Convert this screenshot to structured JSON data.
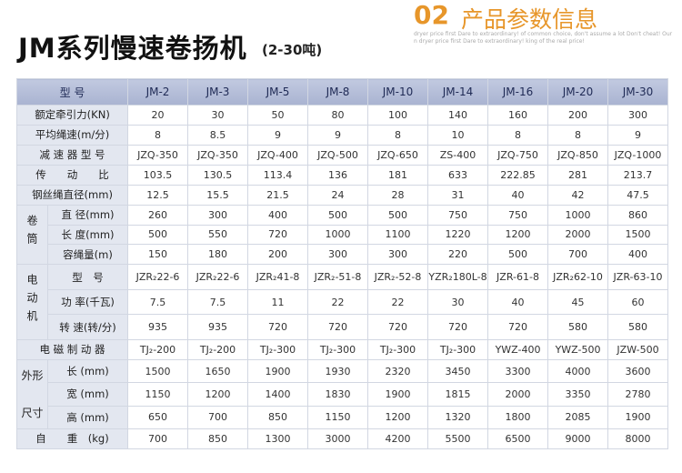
{
  "header": {
    "title": "JM系列慢速卷扬机",
    "subtitle": "(2-30吨)",
    "section_number": "02",
    "section_title": "产品参数信息",
    "tagline": "dryer price first Dare to extraordinary! of common choice, don't assume a lot Don't cheat! Our n dryer price first Dare to extraordinary! king of the real price!"
  },
  "table": {
    "header": [
      "型 号",
      "JM-2",
      "JM-3",
      "JM-5",
      "JM-8",
      "JM-10",
      "JM-14",
      "JM-16",
      "JM-20",
      "JM-30"
    ],
    "rows": [
      {
        "label": "额定牵引力(KN)",
        "values": [
          "20",
          "30",
          "50",
          "80",
          "100",
          "140",
          "160",
          "200",
          "300"
        ]
      },
      {
        "label": "平均绳速(m/分)",
        "values": [
          "8",
          "8.5",
          "9",
          "9",
          "8",
          "10",
          "8",
          "8",
          "9"
        ]
      },
      {
        "label": "减 速 器 型 号",
        "values": [
          "JZQ-350",
          "JZQ-350",
          "JZQ-400",
          "JZQ-500",
          "JZQ-650",
          "ZS-400",
          "JZQ-750",
          "JZQ-850",
          "JZQ-1000"
        ]
      },
      {
        "label": "传　　动　　比",
        "values": [
          "103.5",
          "130.5",
          "113.4",
          "136",
          "181",
          "633",
          "222.85",
          "281",
          "213.7"
        ]
      },
      {
        "label": "钢丝绳直径(mm)",
        "values": [
          "12.5",
          "15.5",
          "21.5",
          "24",
          "28",
          "31",
          "40",
          "42",
          "47.5"
        ]
      },
      {
        "group": [
          "卷筒"
        ],
        "items": [
          {
            "label": "直 径(mm)",
            "values": [
              "260",
              "300",
              "400",
              "500",
              "500",
              "750",
              "750",
              "1000",
              "860"
            ]
          },
          {
            "label": "长 度(mm)",
            "values": [
              "500",
              "550",
              "720",
              "1000",
              "1100",
              "1220",
              "1200",
              "2000",
              "1500"
            ]
          },
          {
            "label": "容绳量(m)",
            "values": [
              "150",
              "180",
              "200",
              "300",
              "300",
              "220",
              "500",
              "700",
              "400"
            ]
          }
        ]
      },
      {
        "group": [
          "电动机"
        ],
        "items": [
          {
            "label": "型　号",
            "values": [
              "JZR₂22-6",
              "JZR₂22-6",
              "JZR₂41-8",
              "JZR₂-51-8",
              "JZR₂-52-8",
              "YZR₂180L-8",
              "JZR-61-8",
              "JZR₂62-10",
              "JZR-63-10"
            ]
          },
          {
            "label": "功 率(千瓦)",
            "values": [
              "7.5",
              "7.5",
              "11",
              "22",
              "22",
              "30",
              "40",
              "45",
              "60"
            ]
          },
          {
            "label": "转 速(转/分)",
            "values": [
              "935",
              "935",
              "720",
              "720",
              "720",
              "720",
              "720",
              "580",
              "580"
            ]
          }
        ]
      },
      {
        "label": "电 磁 制 动 器",
        "values": [
          "TJ₂-200",
          "TJ₂-200",
          "TJ₂-300",
          "TJ₂-300",
          "TJ₂-300",
          "TJ₂-300",
          "YWZ-400",
          "YWZ-500",
          "JZW-500"
        ]
      },
      {
        "group": [
          "外形",
          "尺寸"
        ],
        "items": [
          {
            "label": "长 (mm)",
            "values": [
              "1500",
              "1650",
              "1900",
              "1930",
              "2320",
              "3450",
              "3300",
              "4000",
              "3600"
            ]
          },
          {
            "label": "宽 (mm)",
            "values": [
              "1150",
              "1200",
              "1400",
              "1830",
              "1900",
              "1815",
              "2000",
              "3350",
              "2780"
            ]
          },
          {
            "label": "高 (mm)",
            "values": [
              "650",
              "700",
              "850",
              "1150",
              "1200",
              "1320",
              "1800",
              "2085",
              "1900"
            ]
          }
        ]
      },
      {
        "label": "自　　重　(kg)",
        "values": [
          "700",
          "850",
          "1300",
          "3000",
          "4200",
          "5500",
          "6500",
          "9000",
          "8000"
        ]
      }
    ]
  }
}
